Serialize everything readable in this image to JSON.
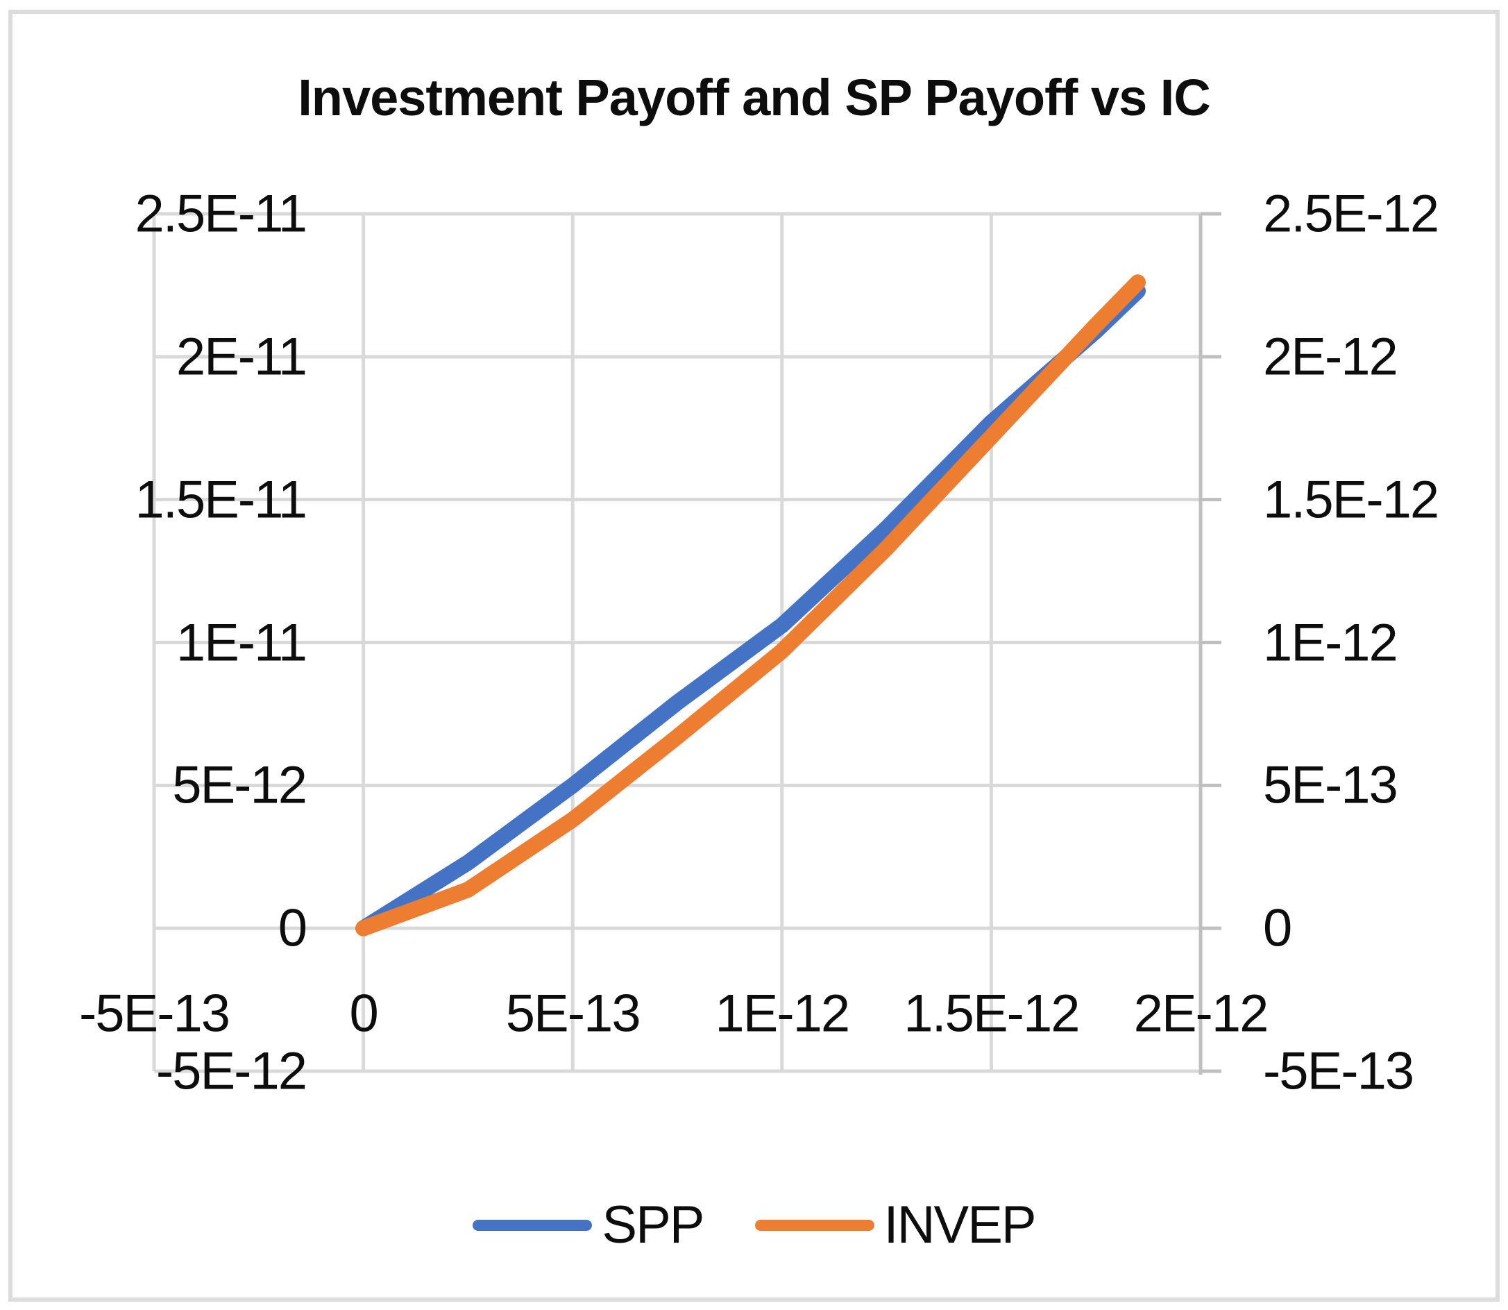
{
  "window": {
    "background": "#ffffff",
    "border_color": "#dcdcdc"
  },
  "chart_data": {
    "type": "line",
    "title": "Investment Payoff and SP Payoff vs IC",
    "grid": true,
    "legend_position": "bottom",
    "colors": {
      "gridline": "#d9d9d9",
      "axis_line": "#bfbfbf",
      "text": "#0d0d0d"
    },
    "x_axis": {
      "min_e12": -0.5,
      "max_e12": 2.0,
      "tick_labels": [
        "-5E-13",
        "0",
        "5E-13",
        "1E-12",
        "1.5E-12",
        "2E-12"
      ],
      "tick_values_e12": [
        -0.5,
        0,
        0.5,
        1,
        1.5,
        2
      ]
    },
    "left_y_axis": {
      "min_e12": -5,
      "max_e12": 25,
      "tick_labels": [
        "2.5E-11",
        "2E-11",
        "1.5E-11",
        "1E-11",
        "5E-12",
        "0",
        "-5E-12"
      ],
      "tick_values_e12": [
        25,
        20,
        15,
        10,
        5,
        0,
        -5
      ]
    },
    "right_y_axis": {
      "min_e13": -5,
      "max_e13": 25,
      "tick_labels": [
        "2.5E-12",
        "2E-12",
        "1.5E-12",
        "1E-12",
        "5E-13",
        "0",
        "-5E-13"
      ],
      "tick_values_e13": [
        25,
        20,
        15,
        10,
        5,
        0,
        -5
      ]
    },
    "series": [
      {
        "name": "SPP",
        "axis": "left",
        "color": "#4472C4",
        "x_e12": [
          0,
          0.25,
          0.5,
          0.75,
          1.0,
          1.25,
          1.5,
          1.75,
          1.85
        ],
        "y_e12": [
          0,
          2.3,
          5.0,
          7.9,
          10.6,
          14.0,
          17.7,
          20.9,
          22.3
        ]
      },
      {
        "name": "INVEP",
        "axis": "right",
        "color": "#ED7D31",
        "x_e12": [
          0,
          0.25,
          0.5,
          0.75,
          1.0,
          1.25,
          1.5,
          1.75,
          1.85
        ],
        "y_e13": [
          0,
          1.35,
          3.8,
          6.7,
          9.7,
          13.3,
          17.2,
          21.1,
          22.6
        ]
      }
    ]
  }
}
